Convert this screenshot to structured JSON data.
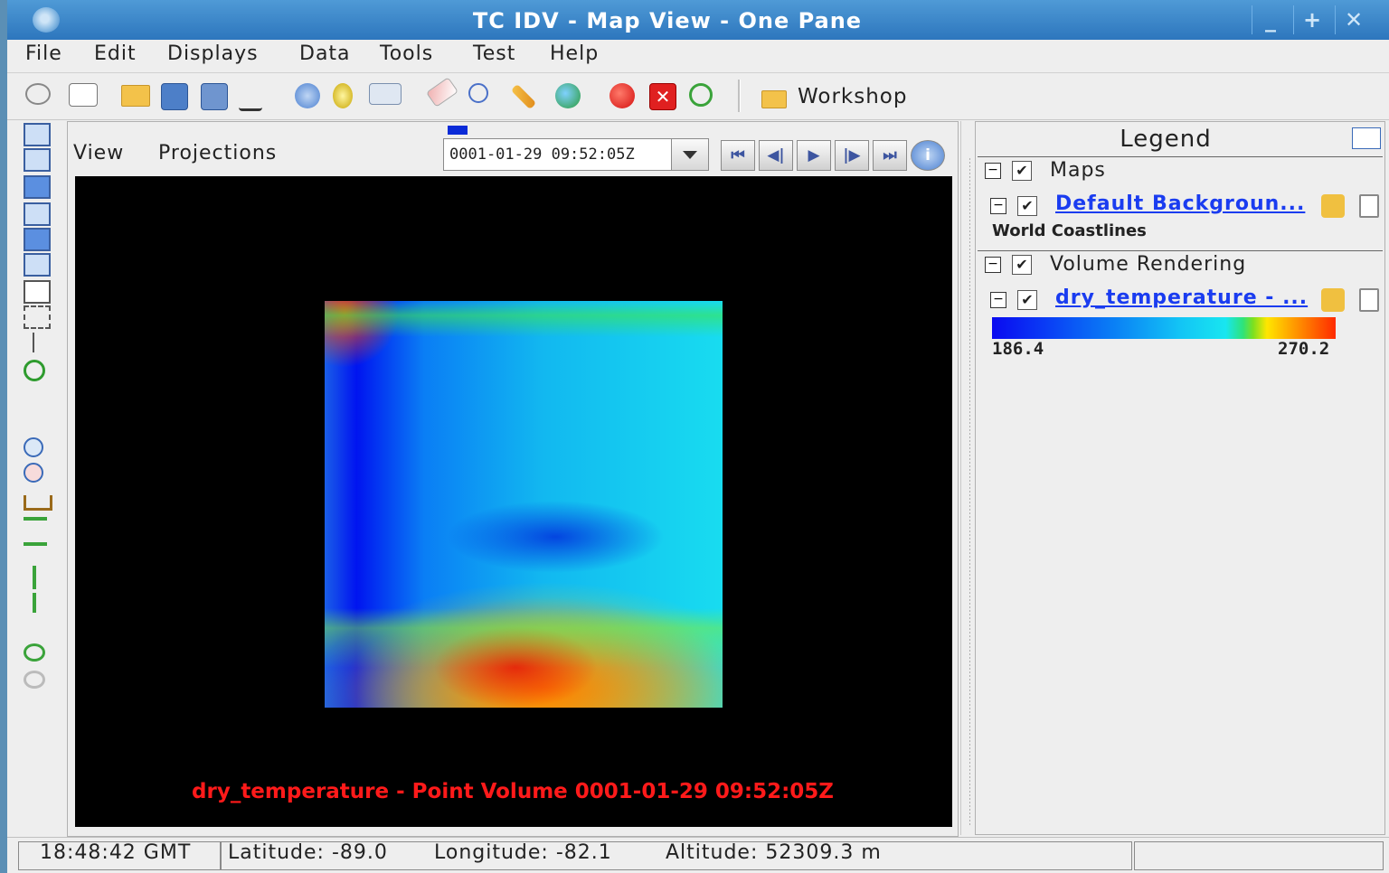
{
  "window": {
    "title": "TC IDV - Map View - One Pane",
    "minimize": "_",
    "maximize": "+",
    "close": "✕"
  },
  "menubar": {
    "items": [
      "File",
      "Edit",
      "Displays",
      "Data",
      "Tools",
      "Test",
      "Help"
    ]
  },
  "toolbar": {
    "workshop_label": "Workshop"
  },
  "view": {
    "menus": [
      "View",
      "Projections"
    ],
    "time_value": "0001-01-29 09:52:05Z",
    "anim_buttons": [
      "⏮",
      "◀|",
      "▶",
      "|▶",
      "⏭",
      "i"
    ],
    "canvas_label": "dry_temperature - Point Volume 0001-01-29 09:52:05Z"
  },
  "legend": {
    "title": "Legend",
    "groups": [
      {
        "name": "Maps",
        "layer": "Default Backgroun...",
        "sublabel": "World Coastlines"
      },
      {
        "name": "Volume Rendering",
        "layer": "dry_temperature - ...",
        "range_min": "186.4",
        "range_max": "270.2"
      }
    ]
  },
  "status": {
    "time": "18:48:42 GMT",
    "latitude": "Latitude: -89.0",
    "longitude": "Longitude: -82.1",
    "altitude": "Altitude: 52309.3 m"
  },
  "colors": {
    "title_bar": "#2d76bd",
    "canvas_bg": "#000000",
    "canvas_label": "#ff1a1a",
    "link": "#1a3cf0"
  }
}
